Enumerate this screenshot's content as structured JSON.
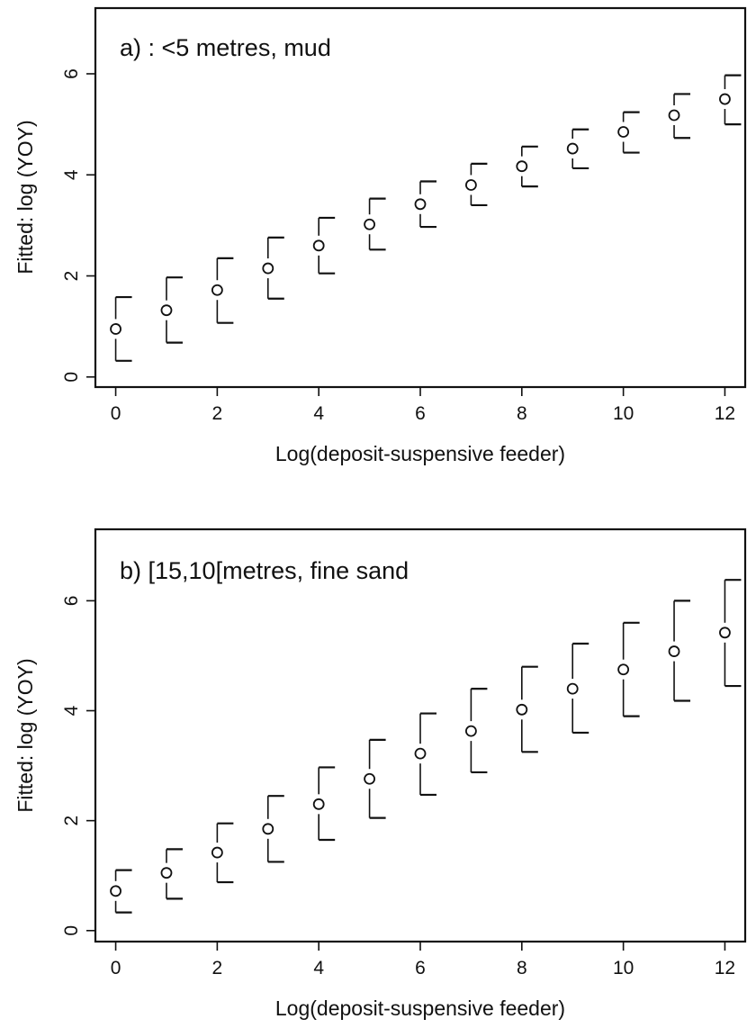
{
  "chart_data": [
    {
      "type": "scatter",
      "title": "a) : <5 metres, mud",
      "xlabel": "Log(deposit-suspensive feeder)",
      "ylabel": "Fitted: log (YOY)",
      "xlim": [
        -0.4,
        12.4
      ],
      "ylim": [
        -0.2,
        7.3
      ],
      "xticks": [
        "0",
        "2",
        "4",
        "6",
        "8",
        "10",
        "12"
      ],
      "yticks": [
        "0",
        "2",
        "4",
        "6"
      ],
      "grid": false,
      "x": [
        0,
        1,
        2,
        3,
        4,
        5,
        6,
        7,
        8,
        9,
        10,
        11,
        12
      ],
      "fitted": [
        0.95,
        1.32,
        1.72,
        2.15,
        2.6,
        3.02,
        3.42,
        3.8,
        4.17,
        4.52,
        4.85,
        5.18,
        5.5
      ],
      "lower": [
        0.32,
        0.68,
        1.07,
        1.55,
        2.05,
        2.52,
        2.97,
        3.4,
        3.77,
        4.13,
        4.44,
        4.73,
        5.0
      ],
      "upper": [
        1.58,
        1.97,
        2.35,
        2.76,
        3.15,
        3.53,
        3.87,
        4.22,
        4.56,
        4.9,
        5.24,
        5.6,
        5.97
      ]
    },
    {
      "type": "scatter",
      "title": "b) [15,10[metres, fine sand",
      "xlabel": "Log(deposit-suspensive feeder)",
      "ylabel": "Fitted: log (YOY)",
      "xlim": [
        -0.4,
        12.4
      ],
      "ylim": [
        -0.2,
        7.3
      ],
      "xticks": [
        "0",
        "2",
        "4",
        "6",
        "8",
        "10",
        "12"
      ],
      "yticks": [
        "0",
        "2",
        "4",
        "6"
      ],
      "grid": false,
      "x": [
        0,
        1,
        2,
        3,
        4,
        5,
        6,
        7,
        8,
        9,
        10,
        11,
        12
      ],
      "fitted": [
        0.72,
        1.05,
        1.42,
        1.85,
        2.3,
        2.76,
        3.22,
        3.63,
        4.02,
        4.4,
        4.75,
        5.08,
        5.42
      ],
      "lower": [
        0.33,
        0.58,
        0.88,
        1.25,
        1.65,
        2.05,
        2.47,
        2.88,
        3.25,
        3.6,
        3.9,
        4.18,
        4.45
      ],
      "upper": [
        1.1,
        1.48,
        1.95,
        2.45,
        2.97,
        3.47,
        3.95,
        4.4,
        4.8,
        5.22,
        5.6,
        6.0,
        6.38
      ]
    }
  ]
}
